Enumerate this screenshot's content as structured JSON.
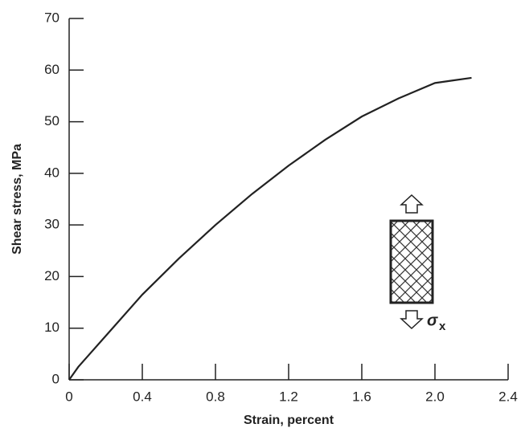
{
  "chart_data": {
    "type": "line",
    "x_label": "Strain, percent",
    "y_label": "Shear stress, MPa",
    "x": [
      0,
      0.05,
      0.1,
      0.2,
      0.4,
      0.6,
      0.8,
      1.0,
      1.2,
      1.4,
      1.6,
      1.8,
      2.0,
      2.1,
      2.2
    ],
    "series": [
      {
        "color": "#222222",
        "values": [
          0,
          2.5,
          4.5,
          8.5,
          16.5,
          23.5,
          30,
          36,
          41.5,
          46.5,
          51,
          54.5,
          57.5,
          58,
          58.5
        ]
      }
    ],
    "xlim": [
      0,
      2.4
    ],
    "xticks": [
      0,
      0.4,
      0.8,
      1.2,
      1.6,
      2.0,
      2.4
    ],
    "ylim": [
      0,
      70
    ],
    "yticks": [
      0,
      10,
      20,
      30,
      40,
      50,
      60,
      70
    ],
    "grid": false,
    "annotation": {
      "symbol": "σ",
      "subscript": "x"
    }
  }
}
